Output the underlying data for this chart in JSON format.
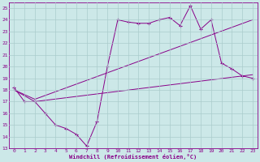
{
  "xlabel": "Windchill (Refroidissement éolien,°C)",
  "background_color": "#cce8e8",
  "grid_color": "#aacccc",
  "line_color": "#880088",
  "xlim": [
    -0.5,
    23.5
  ],
  "ylim": [
    13,
    25.5
  ],
  "yticks": [
    13,
    14,
    15,
    16,
    17,
    18,
    19,
    20,
    21,
    22,
    23,
    24,
    25
  ],
  "xticks": [
    0,
    1,
    2,
    3,
    4,
    5,
    6,
    7,
    8,
    9,
    10,
    11,
    12,
    13,
    14,
    15,
    16,
    17,
    18,
    19,
    20,
    21,
    22,
    23
  ],
  "series": [
    {
      "x": [
        0,
        1,
        2,
        3,
        4,
        5,
        6,
        7,
        8,
        9,
        10,
        11,
        12,
        13,
        14,
        15,
        16,
        17,
        18,
        19,
        20,
        21,
        22,
        23
      ],
      "y": [
        18.2,
        17.0,
        17.0,
        16.0,
        15.0,
        14.7,
        14.2,
        13.2,
        15.3,
        20.0,
        24.0,
        23.8,
        23.7,
        23.7,
        24.0,
        24.2,
        23.5,
        25.2,
        23.2,
        24.0,
        20.3,
        19.8,
        19.2,
        19.0
      ],
      "marker": "+"
    },
    {
      "x": [
        0,
        2,
        23
      ],
      "y": [
        18.0,
        17.0,
        19.3
      ],
      "marker": null
    },
    {
      "x": [
        0,
        2,
        23
      ],
      "y": [
        18.0,
        17.2,
        24.0
      ],
      "marker": null
    }
  ]
}
